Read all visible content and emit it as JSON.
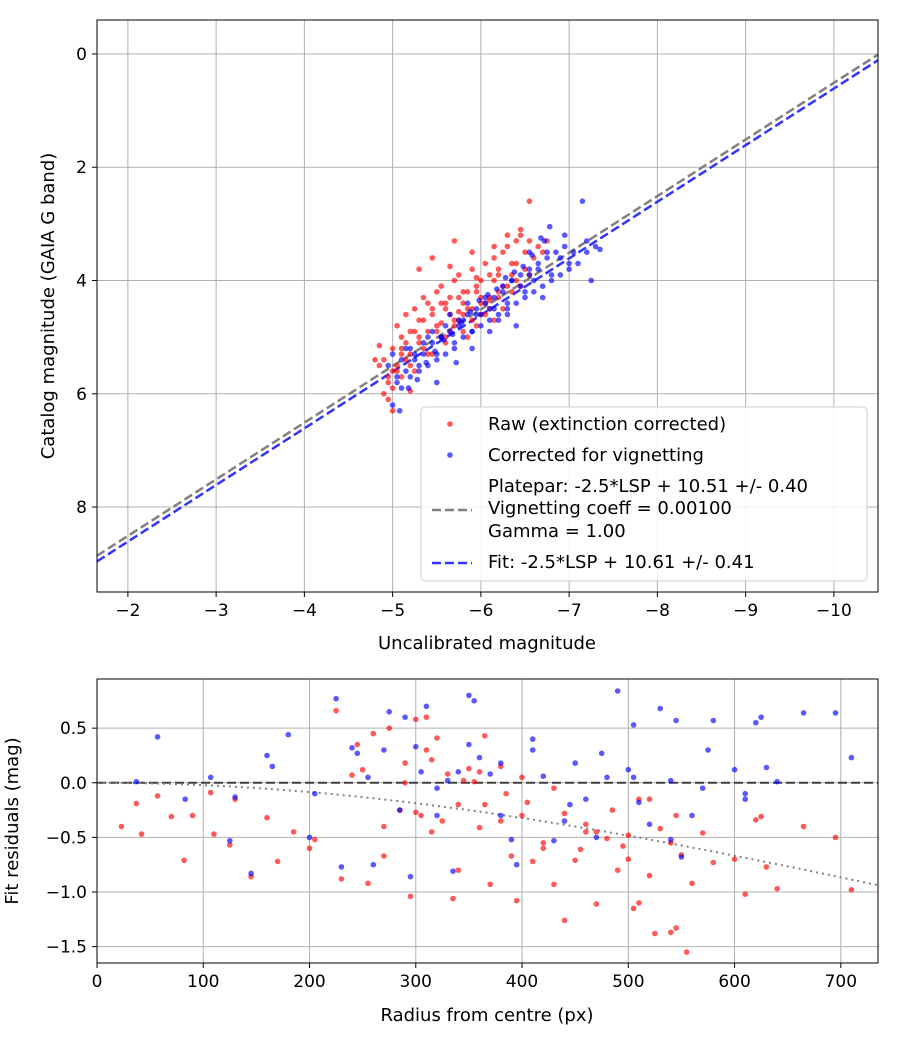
{
  "colors": {
    "raw": "#ff0000",
    "corrected": "#0000ff",
    "platepar_line": "#808080",
    "fit_line": "#3333ff",
    "zero_line": "#404040",
    "vignetting_curve": "#808080",
    "grid": "#b0b0b0"
  },
  "chart_data": [
    {
      "type": "scatter",
      "xlabel": "Uncalibrated magnitude",
      "ylabel": "Catalog magnitude (GAIA G band)",
      "xlim": [
        -1.65,
        -10.5
      ],
      "ylim": [
        9.5,
        -0.6
      ],
      "x_ticks": [
        -2,
        -3,
        -4,
        -5,
        -6,
        -7,
        -8,
        -9,
        -10
      ],
      "x_tick_labels": [
        "−2",
        "−3",
        "−4",
        "−5",
        "−6",
        "−7",
        "−8",
        "−9",
        "−10"
      ],
      "y_ticks": [
        0,
        2,
        4,
        6,
        8
      ],
      "y_tick_labels": [
        "0",
        "2",
        "4",
        "6",
        "8"
      ],
      "grid": true,
      "legend_position": "lower-right",
      "lines": [
        {
          "name": "Platepar: -2.5*LSP + 10.51 +/- 0.40",
          "slope": 1.0,
          "intercept": 10.51,
          "style": "dashed"
        },
        {
          "name": "Fit: -2.5*LSP + 10.61 +/- 0.41",
          "slope": 1.0,
          "intercept": 10.61,
          "style": "dashed"
        }
      ],
      "series": [
        {
          "name": "Raw (extinction corrected)",
          "marker": "dot",
          "x": [
            -5.0,
            -4.9,
            -4.95,
            -5.05,
            -4.85,
            -5.1,
            -5.15,
            -5.2,
            -5.3,
            -5.25,
            -5.35,
            -5.4,
            -5.45,
            -5.5,
            -5.55,
            -5.6,
            -5.65,
            -5.7,
            -5.75,
            -5.8,
            -5.85,
            -5.9,
            -5.95,
            -6.0,
            -6.05,
            -6.1,
            -6.15,
            -6.2,
            -6.25,
            -6.3,
            -6.35,
            -6.4,
            -6.45,
            -6.5,
            -6.55,
            -5.0,
            -5.1,
            -5.2,
            -5.3,
            -5.4,
            -5.5,
            -5.6,
            -5.7,
            -5.8,
            -5.9,
            -6.0,
            -6.1,
            -6.2,
            -6.3,
            -5.05,
            -5.15,
            -5.25,
            -5.35,
            -5.45,
            -5.55,
            -5.65,
            -5.75,
            -5.85,
            -5.95,
            -6.05,
            -6.15,
            -6.25,
            -6.35,
            -4.9,
            -5.0,
            -5.1,
            -5.2,
            -5.3,
            -5.4,
            -5.5,
            -5.6,
            -5.7,
            -5.8,
            -5.9,
            -6.0,
            -6.1,
            -6.2,
            -6.4,
            -6.5,
            -6.6,
            -6.7,
            -4.95,
            -5.05,
            -5.15,
            -5.25,
            -5.35,
            -5.45,
            -5.55,
            -5.65,
            -5.75,
            -5.85,
            -5.95,
            -6.05,
            -6.15,
            -6.25,
            -6.35,
            -6.45,
            -6.55,
            -6.65,
            -6.75,
            -6.45,
            -6.3,
            -6.15,
            -5.9,
            -5.7,
            -5.45,
            -5.3,
            -5.6,
            -5.8,
            -6.0,
            -6.2,
            -6.4,
            -4.95,
            -5.0,
            -5.1,
            -5.2,
            -4.8,
            -4.85,
            -5.55,
            -5.75,
            -6.1,
            -6.55,
            -5.95,
            -5.65
          ],
          "y": [
            6.3,
            6.0,
            5.8,
            5.6,
            5.5,
            5.3,
            5.1,
            4.9,
            4.7,
            4.5,
            4.3,
            4.4,
            4.6,
            4.2,
            4.1,
            4.5,
            4.3,
            4.0,
            3.9,
            4.4,
            4.2,
            3.8,
            4.1,
            4.0,
            3.7,
            3.9,
            3.6,
            3.8,
            3.5,
            3.4,
            3.7,
            3.3,
            3.2,
            3.5,
            3.3,
            5.2,
            5.0,
            5.3,
            5.1,
            4.9,
            4.8,
            5.0,
            4.7,
            4.6,
            4.5,
            4.4,
            4.3,
            4.2,
            4.1,
            4.8,
            4.6,
            4.9,
            4.7,
            4.5,
            4.4,
            4.6,
            4.3,
            4.5,
            4.2,
            4.4,
            4.0,
            4.1,
            3.9,
            5.4,
            5.6,
            5.2,
            5.5,
            5.0,
            5.3,
            4.9,
            5.1,
            4.8,
            4.9,
            4.7,
            4.6,
            4.5,
            4.3,
            4.0,
            3.8,
            3.6,
            3.5,
            5.7,
            5.5,
            5.4,
            5.6,
            5.2,
            5.3,
            5.0,
            4.9,
            4.7,
            5.0,
            4.8,
            4.6,
            4.7,
            4.5,
            4.2,
            4.1,
            3.9,
            3.4,
            3.3,
            3.1,
            3.2,
            3.4,
            3.5,
            3.3,
            3.6,
            3.8,
            4.4,
            4.2,
            4.3,
            3.9,
            3.7,
            6.1,
            5.9,
            5.7,
            5.95,
            5.4,
            5.15,
            4.75,
            4.55,
            4.35,
            2.6,
            3.95,
            3.75
          ]
        },
        {
          "name": "Corrected for vignetting",
          "marker": "dot",
          "x": [
            -5.0,
            -5.1,
            -5.2,
            -5.3,
            -5.4,
            -5.5,
            -5.6,
            -5.7,
            -5.8,
            -5.9,
            -6.0,
            -6.1,
            -6.2,
            -6.3,
            -6.4,
            -6.5,
            -6.6,
            -6.7,
            -6.8,
            -6.9,
            -7.0,
            -7.1,
            -7.2,
            -7.3,
            -5.05,
            -5.15,
            -5.25,
            -5.35,
            -5.45,
            -5.55,
            -5.65,
            -5.75,
            -5.85,
            -5.95,
            -6.05,
            -6.15,
            -6.25,
            -6.35,
            -6.45,
            -6.55,
            -6.65,
            -6.75,
            -6.85,
            -6.95,
            -5.0,
            -5.1,
            -5.2,
            -5.3,
            -5.4,
            -5.5,
            -5.6,
            -5.7,
            -5.8,
            -5.9,
            -6.0,
            -6.1,
            -6.2,
            -6.3,
            -6.4,
            -6.5,
            -6.6,
            -6.7,
            -6.8,
            -7.0,
            -7.2,
            -4.95,
            -5.05,
            -5.15,
            -5.25,
            -5.35,
            -5.45,
            -5.55,
            -5.65,
            -5.75,
            -5.85,
            -5.95,
            -6.05,
            -6.15,
            -6.25,
            -6.35,
            -6.45,
            -6.55,
            -6.65,
            -6.75,
            -6.9,
            -7.05,
            -7.25,
            -5.08,
            -5.18,
            -5.28,
            -5.38,
            -5.48,
            -5.58,
            -5.68,
            -5.78,
            -5.88,
            -5.98,
            -6.08,
            -6.18,
            -6.28,
            -6.38,
            -6.48,
            -6.58,
            -6.68,
            -6.78,
            -7.15,
            -7.35,
            -6.95,
            -6.72,
            -6.55,
            -6.3,
            -6.1,
            -5.9,
            -5.72,
            -5.5
          ],
          "y": [
            6.2,
            5.9,
            5.7,
            5.6,
            5.5,
            5.4,
            5.3,
            5.2,
            5.0,
            4.9,
            4.8,
            4.7,
            4.6,
            4.5,
            4.4,
            4.3,
            4.2,
            4.1,
            4.0,
            3.9,
            3.8,
            3.7,
            3.5,
            3.4,
            5.8,
            5.6,
            5.4,
            5.3,
            5.1,
            5.0,
            4.9,
            4.7,
            4.6,
            4.5,
            4.4,
            4.3,
            4.1,
            4.0,
            3.9,
            3.8,
            3.7,
            3.6,
            3.5,
            3.4,
            5.3,
            5.4,
            5.2,
            5.5,
            5.0,
            5.3,
            4.8,
            5.1,
            4.7,
            4.9,
            4.6,
            4.5,
            4.7,
            4.4,
            4.8,
            4.2,
            4.0,
            4.3,
            3.9,
            3.7,
            3.3,
            5.5,
            5.7,
            5.2,
            5.3,
            5.1,
            4.9,
            5.0,
            4.6,
            4.8,
            4.4,
            4.6,
            4.3,
            4.5,
            4.2,
            4.0,
            4.1,
            3.9,
            3.8,
            3.5,
            3.6,
            3.5,
            4.0,
            6.3,
            5.9,
            5.75,
            5.45,
            5.25,
            5.05,
            4.95,
            4.75,
            4.55,
            4.35,
            4.25,
            4.15,
            3.95,
            3.85,
            3.75,
            3.55,
            3.25,
            3.05,
            2.6,
            3.45,
            3.2,
            3.3,
            3.5,
            4.6,
            4.9,
            5.2,
            5.45,
            5.8
          ]
        }
      ]
    },
    {
      "type": "scatter",
      "xlabel": "Radius from centre (px)",
      "ylabel": "Fit residuals (mag)",
      "xlim": [
        0,
        735
      ],
      "ylim": [
        -1.65,
        0.95
      ],
      "x_ticks": [
        0,
        100,
        200,
        300,
        400,
        500,
        600,
        700
      ],
      "x_tick_labels": [
        "0",
        "100",
        "200",
        "300",
        "400",
        "500",
        "600",
        "700"
      ],
      "y_ticks": [
        0.5,
        0.0,
        -0.5,
        -1.0,
        -1.5
      ],
      "y_tick_labels": [
        "0.5",
        "0.0",
        "−0.5",
        "−1.0",
        "−1.5"
      ],
      "grid": true,
      "lines": [
        {
          "name": "zero",
          "y": 0.0,
          "style": "dashed"
        },
        {
          "name": "vignetting",
          "coeff": 0.001,
          "style": "dotted"
        }
      ],
      "series": [
        {
          "name": "raw",
          "marker": "dot",
          "x": [
            23,
            37,
            42,
            57,
            70,
            82,
            90,
            107,
            110,
            125,
            130,
            145,
            160,
            170,
            185,
            200,
            205,
            225,
            230,
            240,
            245,
            255,
            260,
            270,
            275,
            285,
            290,
            295,
            300,
            305,
            310,
            315,
            320,
            330,
            335,
            340,
            350,
            355,
            360,
            365,
            370,
            380,
            390,
            395,
            400,
            410,
            420,
            430,
            440,
            450,
            455,
            460,
            470,
            480,
            490,
            495,
            500,
            505,
            510,
            520,
            525,
            530,
            540,
            545,
            550,
            555,
            560,
            570,
            580,
            600,
            610,
            620,
            625,
            630,
            640,
            665,
            695,
            710,
            300,
            315,
            325,
            345,
            365,
            385,
            405,
            430,
            460,
            485,
            510,
            540,
            250,
            270,
            290,
            310,
            340,
            360,
            380,
            400,
            420,
            440,
            470,
            500,
            520,
            545
          ],
          "y": [
            -0.4,
            -0.19,
            -0.47,
            -0.12,
            -0.31,
            -0.71,
            -0.3,
            -0.09,
            -0.47,
            -0.57,
            -0.15,
            -0.86,
            -0.32,
            -0.72,
            -0.45,
            -0.6,
            -0.52,
            0.66,
            -0.88,
            0.07,
            0.35,
            -0.92,
            0.45,
            -0.67,
            0.5,
            -0.25,
            0.18,
            -1.04,
            0.58,
            -0.3,
            0.6,
            0.21,
            0.41,
            0.08,
            -1.06,
            -0.8,
            0.13,
            0.01,
            -0.41,
            0.43,
            -0.93,
            0.15,
            -0.67,
            -1.08,
            -0.3,
            -0.72,
            -0.55,
            -0.93,
            -1.26,
            -0.71,
            -0.61,
            -0.45,
            -1.11,
            -0.51,
            -0.8,
            -0.58,
            -0.48,
            -1.15,
            -1.1,
            -0.15,
            -1.38,
            -0.42,
            -1.37,
            -1.33,
            -0.66,
            -1.55,
            -0.92,
            -0.46,
            -0.73,
            -0.7,
            -1.02,
            -0.34,
            -0.31,
            -0.77,
            -0.97,
            -0.4,
            -0.5,
            -0.98,
            -0.27,
            -0.45,
            -0.35,
            0.02,
            -0.2,
            -0.1,
            -0.18,
            -0.05,
            -0.38,
            -0.25,
            -0.15,
            -0.55,
            0.12,
            -0.4,
            0.0,
            0.3,
            -0.2,
            0.1,
            -0.35,
            0.05,
            -0.6,
            -0.28,
            -0.45,
            -0.7,
            -0.85,
            -0.3
          ]
        },
        {
          "name": "corrected",
          "marker": "dot",
          "x": [
            37,
            57,
            83,
            107,
            125,
            130,
            145,
            160,
            165,
            180,
            200,
            205,
            225,
            230,
            240,
            245,
            255,
            260,
            270,
            275,
            285,
            290,
            295,
            300,
            305,
            310,
            320,
            330,
            335,
            340,
            350,
            355,
            360,
            370,
            380,
            390,
            395,
            410,
            420,
            430,
            440,
            450,
            460,
            470,
            480,
            490,
            500,
            505,
            510,
            520,
            530,
            540,
            545,
            550,
            560,
            570,
            580,
            600,
            610,
            620,
            625,
            630,
            640,
            665,
            695,
            710,
            320,
            350,
            380,
            410,
            445,
            475,
            505,
            540,
            575,
            610
          ],
          "y": [
            0.01,
            0.42,
            -0.15,
            0.05,
            -0.53,
            -0.13,
            -0.83,
            0.25,
            0.15,
            0.44,
            -0.5,
            -0.1,
            0.77,
            -0.77,
            0.32,
            0.27,
            0.05,
            -0.75,
            0.3,
            0.65,
            -0.25,
            0.6,
            -0.86,
            0.33,
            0.1,
            0.7,
            -0.05,
            0.02,
            -0.81,
            0.1,
            0.8,
            0.75,
            0.23,
            0.08,
            -0.3,
            -0.52,
            -0.75,
            0.3,
            0.06,
            -0.53,
            -0.35,
            0.18,
            -0.15,
            -0.5,
            0.05,
            0.84,
            0.12,
            0.53,
            -0.18,
            -0.38,
            0.68,
            -0.52,
            0.57,
            -0.68,
            -0.3,
            -0.05,
            0.57,
            0.12,
            -0.15,
            0.55,
            0.6,
            0.14,
            0.01,
            0.64,
            0.64,
            0.23,
            -0.3,
            0.35,
            0.18,
            0.4,
            -0.2,
            0.27,
            0.05,
            0.02,
            0.3,
            -0.1
          ]
        }
      ]
    }
  ],
  "legend": {
    "raw": "Raw (extinction corrected)",
    "corrected": "Corrected for vignetting",
    "platepar_1": "Platepar: -2.5*LSP + 10.51 +/- 0.40",
    "platepar_2": "Vignetting coeff = 0.00100",
    "platepar_3": "Gamma = 1.00",
    "fit": "Fit: -2.5*LSP + 10.61 +/- 0.41"
  }
}
